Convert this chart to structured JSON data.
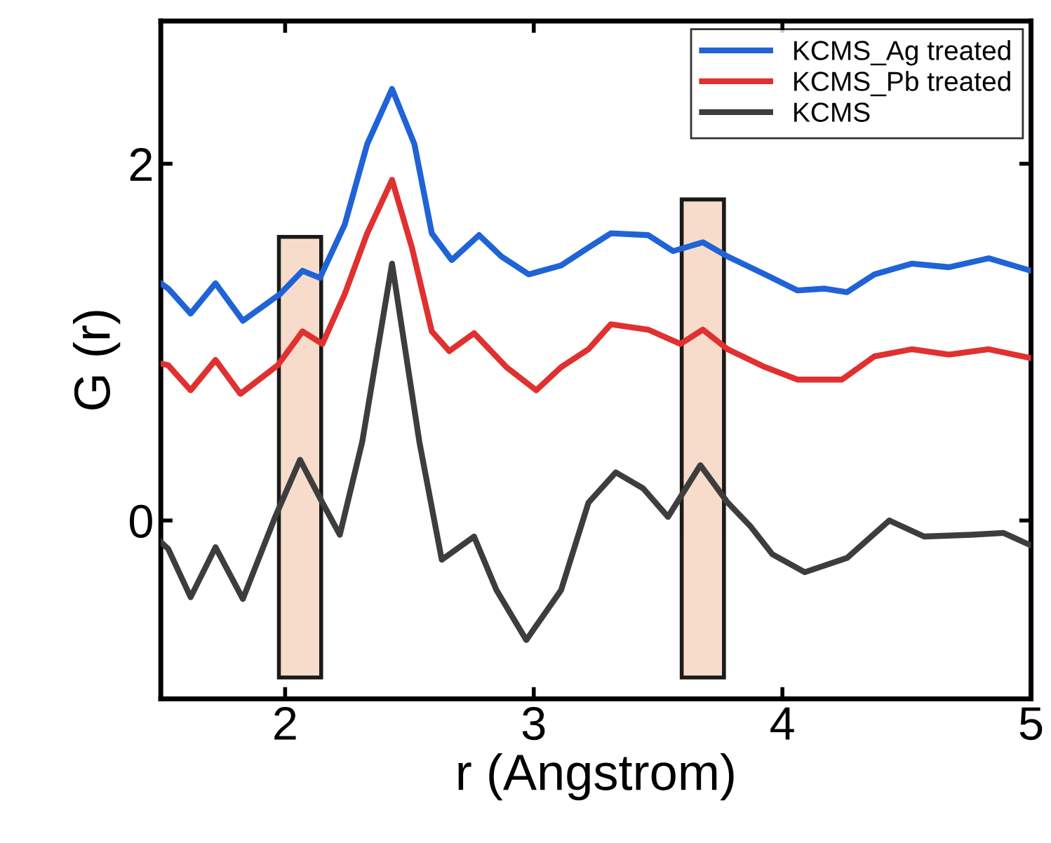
{
  "chart_data": {
    "type": "line",
    "xlabel": "r (Angstrom)",
    "ylabel": "G (r)",
    "xlim": [
      1.5,
      5
    ],
    "ylim": [
      -1,
      2.8
    ],
    "xticks": [
      2,
      3,
      4,
      5
    ],
    "yticks": [
      0,
      2
    ],
    "legend": "top right",
    "grid": false,
    "series": [
      {
        "name": "KCMS_Ag treated",
        "color": "#1f63d6",
        "x": [
          1.5,
          1.53,
          1.62,
          1.72,
          1.83,
          1.98,
          2.07,
          2.14,
          2.24,
          2.33,
          2.43,
          2.52,
          2.59,
          2.67,
          2.78,
          2.87,
          2.98,
          3.11,
          3.22,
          3.31,
          3.46,
          3.56,
          3.68,
          3.78,
          3.93,
          4.06,
          4.17,
          4.26,
          4.37,
          4.52,
          4.67,
          4.83,
          5.0
        ],
        "values": [
          1.33,
          1.3,
          1.16,
          1.33,
          1.12,
          1.27,
          1.4,
          1.36,
          1.66,
          2.11,
          2.42,
          2.11,
          1.61,
          1.46,
          1.6,
          1.48,
          1.38,
          1.43,
          1.53,
          1.61,
          1.6,
          1.51,
          1.56,
          1.48,
          1.38,
          1.29,
          1.3,
          1.28,
          1.38,
          1.44,
          1.42,
          1.47,
          1.4
        ]
      },
      {
        "name": "KCMS_Pb treated",
        "color": "#e03030",
        "x": [
          1.5,
          1.53,
          1.62,
          1.72,
          1.82,
          1.97,
          2.07,
          2.15,
          2.24,
          2.33,
          2.43,
          2.51,
          2.59,
          2.66,
          2.76,
          2.89,
          3.01,
          3.11,
          3.22,
          3.31,
          3.46,
          3.59,
          3.68,
          3.78,
          3.93,
          4.06,
          4.24,
          4.37,
          4.52,
          4.67,
          4.83,
          5.0
        ],
        "values": [
          0.88,
          0.87,
          0.73,
          0.9,
          0.71,
          0.87,
          1.06,
          0.99,
          1.27,
          1.61,
          1.91,
          1.53,
          1.06,
          0.95,
          1.05,
          0.86,
          0.73,
          0.86,
          0.96,
          1.1,
          1.07,
          0.99,
          1.07,
          0.96,
          0.86,
          0.79,
          0.79,
          0.92,
          0.96,
          0.93,
          0.96,
          0.91
        ]
      },
      {
        "name": "KCMS",
        "color": "#3d3d3d",
        "x": [
          1.5,
          1.53,
          1.62,
          1.72,
          1.83,
          1.96,
          2.06,
          2.15,
          2.22,
          2.31,
          2.43,
          2.54,
          2.63,
          2.76,
          2.85,
          2.97,
          3.11,
          3.22,
          3.33,
          3.44,
          3.54,
          3.67,
          3.78,
          3.87,
          3.96,
          4.09,
          4.26,
          4.43,
          4.57,
          4.76,
          4.89,
          5.0
        ],
        "values": [
          -0.12,
          -0.16,
          -0.43,
          -0.15,
          -0.44,
          0.02,
          0.34,
          0.1,
          -0.08,
          0.44,
          1.44,
          0.44,
          -0.22,
          -0.09,
          -0.39,
          -0.67,
          -0.39,
          0.1,
          0.27,
          0.18,
          0.02,
          0.31,
          0.1,
          -0.03,
          -0.19,
          -0.29,
          -0.21,
          0.0,
          -0.09,
          -0.08,
          -0.07,
          -0.14
        ]
      },
      {
        "type": "bar",
        "color": "#f7dccc",
        "x": [
          2.06,
          3.68
        ],
        "base": [
          -0.88,
          -0.88
        ],
        "values": [
          2.47,
          2.68
        ]
      }
    ]
  }
}
